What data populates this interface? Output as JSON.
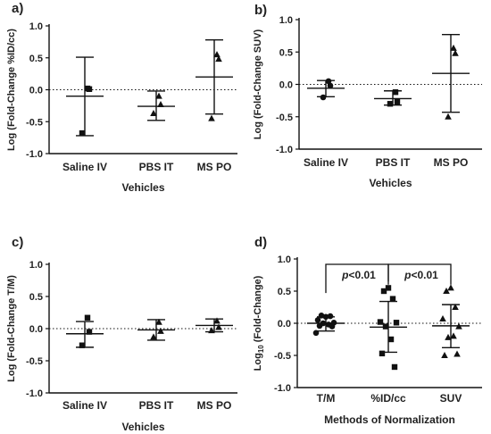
{
  "chart_data": [
    {
      "panel_label": "a)",
      "type": "scatter",
      "ylabel": "Log (Fold-Change %ID/cc)",
      "xlabel": "Vehicles",
      "ylim": [
        -1.0,
        1.0
      ],
      "yticks": [
        "-1.0",
        "-0.5",
        "0.0",
        "0.5",
        "1.0"
      ],
      "reference_line": 0,
      "groups": [
        {
          "name": "Saline IV",
          "marker": "square",
          "points": [
            0.02,
            0.01,
            -0.68
          ],
          "mean": -0.1,
          "err_low": -0.72,
          "err_high": 0.51
        },
        {
          "name": "PBS IT",
          "marker": "triangle",
          "points": [
            -0.1,
            -0.23,
            -0.37
          ],
          "mean": -0.26,
          "err_low": -0.48,
          "err_high": -0.02
        },
        {
          "name": "MS PO",
          "marker": "triangle",
          "points": [
            0.55,
            0.48,
            -0.45
          ],
          "mean": 0.2,
          "err_low": -0.38,
          "err_high": 0.78
        }
      ]
    },
    {
      "panel_label": "b)",
      "type": "scatter",
      "ylabel": "Log (Fold-Change  SUV)",
      "xlabel": "Vehicles",
      "ylim": [
        -1.0,
        1.0
      ],
      "yticks": [
        "-1.0",
        "-0.5",
        "0.0",
        "0.5",
        "1.0"
      ],
      "reference_line": 0,
      "groups": [
        {
          "name": "Saline IV",
          "marker": "circle",
          "points": [
            0.05,
            -0.02,
            -0.2
          ],
          "mean": -0.06,
          "err_low": -0.19,
          "err_high": 0.06
        },
        {
          "name": "PBS IT",
          "marker": "square",
          "points": [
            -0.12,
            -0.27,
            -0.3
          ],
          "mean": -0.22,
          "err_low": -0.32,
          "err_high": -0.1
        },
        {
          "name": "MS PO",
          "marker": "triangle",
          "points": [
            0.56,
            0.48,
            -0.5
          ],
          "mean": 0.17,
          "err_low": -0.43,
          "err_high": 0.77
        }
      ]
    },
    {
      "panel_label": "c)",
      "type": "scatter",
      "ylabel": "Log (Fold-Change T/M)",
      "xlabel": "Vehicles",
      "ylim": [
        -1.0,
        1.0
      ],
      "yticks": [
        "-1.0",
        "-0.5",
        "0.0",
        "0.5",
        "1.0"
      ],
      "reference_line": 0,
      "groups": [
        {
          "name": "Saline IV",
          "marker": "square",
          "points": [
            0.17,
            -0.05,
            -0.26
          ],
          "mean": -0.08,
          "err_low": -0.29,
          "err_high": 0.11
        },
        {
          "name": "PBS IT",
          "marker": "triangle",
          "points": [
            0.1,
            -0.04,
            -0.13
          ],
          "mean": -0.02,
          "err_low": -0.18,
          "err_high": 0.14
        },
        {
          "name": "MS PO",
          "marker": "triangle",
          "points": [
            0.12,
            0.02,
            -0.03
          ],
          "mean": 0.05,
          "err_low": -0.05,
          "err_high": 0.15
        }
      ]
    },
    {
      "panel_label": "d)",
      "type": "scatter",
      "ylabel_main": "Log",
      "ylabel_sub": "10",
      "ylabel_rest": " (Fold-Change)",
      "xlabel": "Methods of  Normalization",
      "ylim": [
        -1.0,
        1.0
      ],
      "yticks": [
        "-1.0",
        "-0.5",
        "0.0",
        "0.5",
        "1.0"
      ],
      "reference_line": 0,
      "groups": [
        {
          "name": "T/M",
          "marker": "circle",
          "points": [
            0.1,
            0.12,
            0.11,
            0.05,
            0.01,
            0.0,
            -0.02,
            -0.04,
            -0.05,
            -0.15
          ],
          "mean": 0.0,
          "err_low": -0.12,
          "err_high": 0.1
        },
        {
          "name": "%ID/cc",
          "marker": "square",
          "points": [
            0.55,
            0.5,
            0.38,
            0.02,
            0.01,
            -0.05,
            -0.25,
            -0.47,
            -0.68
          ],
          "mean": -0.06,
          "err_low": -0.45,
          "err_high": 0.34
        },
        {
          "name": "SUV",
          "marker": "triangle",
          "points": [
            0.55,
            0.5,
            0.25,
            0.07,
            -0.05,
            -0.22,
            -0.2,
            -0.5,
            -0.48
          ],
          "mean": -0.04,
          "err_low": -0.38,
          "err_high": 0.29
        }
      ],
      "brackets": [
        {
          "from": "T/M",
          "to": "%ID/cc",
          "p_letter": "p",
          "p_rest": "<0.01"
        },
        {
          "from": "%ID/cc",
          "to": "SUV",
          "p_letter": "p",
          "p_rest": "<0.01"
        }
      ]
    }
  ]
}
